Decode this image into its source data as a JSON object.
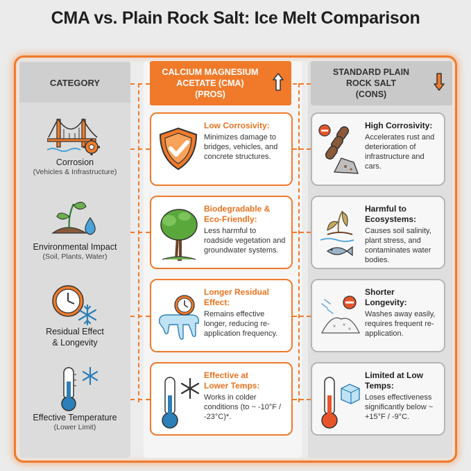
{
  "title": "CMA vs. Plain Rock Salt: Ice Melt Comparison",
  "colors": {
    "accent": "#f07a2a",
    "neutral": "#b5b5b5",
    "pro_title": "#e8731f"
  },
  "headers": {
    "category": "CATEGORY",
    "cma_line1": "CALCIUM MAGNESIUM",
    "cma_line2": "ACETATE (CMA)",
    "cma_line3": "(PROS)",
    "salt_line1": "STANDARD PLAIN",
    "salt_line2": "ROCK SALT",
    "salt_line3": "(CONS)"
  },
  "rows": [
    {
      "category": "Corrosion",
      "category_sub": "(Vehicles & Infrastructure)",
      "category_icon": "bridge-gear-icon",
      "pro_title": "Low Corrosivity:",
      "pro_body": "Minimizes damage to bridges, vehicles, and concrete structures.",
      "pro_icon": "shield-check-icon",
      "con_title": "High Corrosivity:",
      "con_body": "Accelerates rust and deterioration of infrastructure and cars.",
      "con_icon": "rusty-chain-icon"
    },
    {
      "category": "Environmental Impact",
      "category_sub": "(Soil, Plants, Water)",
      "category_icon": "sprout-drop-icon",
      "pro_title_l1": "Biodegradable &",
      "pro_title_l2": "Eco-Friendly:",
      "pro_body": "Less harmful to roadside vegetation and groundwater systems.",
      "pro_icon": "tree-icon",
      "con_title_l1": "Harmful to",
      "con_title_l2": "Ecosystems:",
      "con_body": "Causes soil salinity, plant stress, and contaminates water bodies.",
      "con_icon": "wilted-plant-fish-icon"
    },
    {
      "category_l1": "Residual Effect",
      "category_l2": "& Longevity",
      "category_icon": "clock-snowflake-icon",
      "pro_title_l1": "Longer Residual",
      "pro_title_l2": "Effect:",
      "pro_body": "Remains effective longer, reducing re-application frequency.",
      "pro_icon": "clock-ice-icon",
      "con_title_l1": "Shorter",
      "con_title_l2": "Longevity:",
      "con_body": "Washes away easily, requires frequent re-application.",
      "con_icon": "salt-pile-icon"
    },
    {
      "category": "Effective Temperature",
      "category_sub": "(Lower Limit)",
      "category_icon": "thermometer-cold-icon",
      "pro_title_l1": "Effective at",
      "pro_title_l2": "Lower Temps:",
      "pro_body": "Works in colder conditions (to ~ -10°F / -23°C)*.",
      "pro_icon": "thermometer-snowflake-icon",
      "con_title_l1": "Limited at Low",
      "con_title_l2": "Temps:",
      "con_body": "Loses effectiveness significantly below ~ +15°F / -9°C.",
      "con_icon": "thermometer-ice-cube-icon"
    }
  ]
}
